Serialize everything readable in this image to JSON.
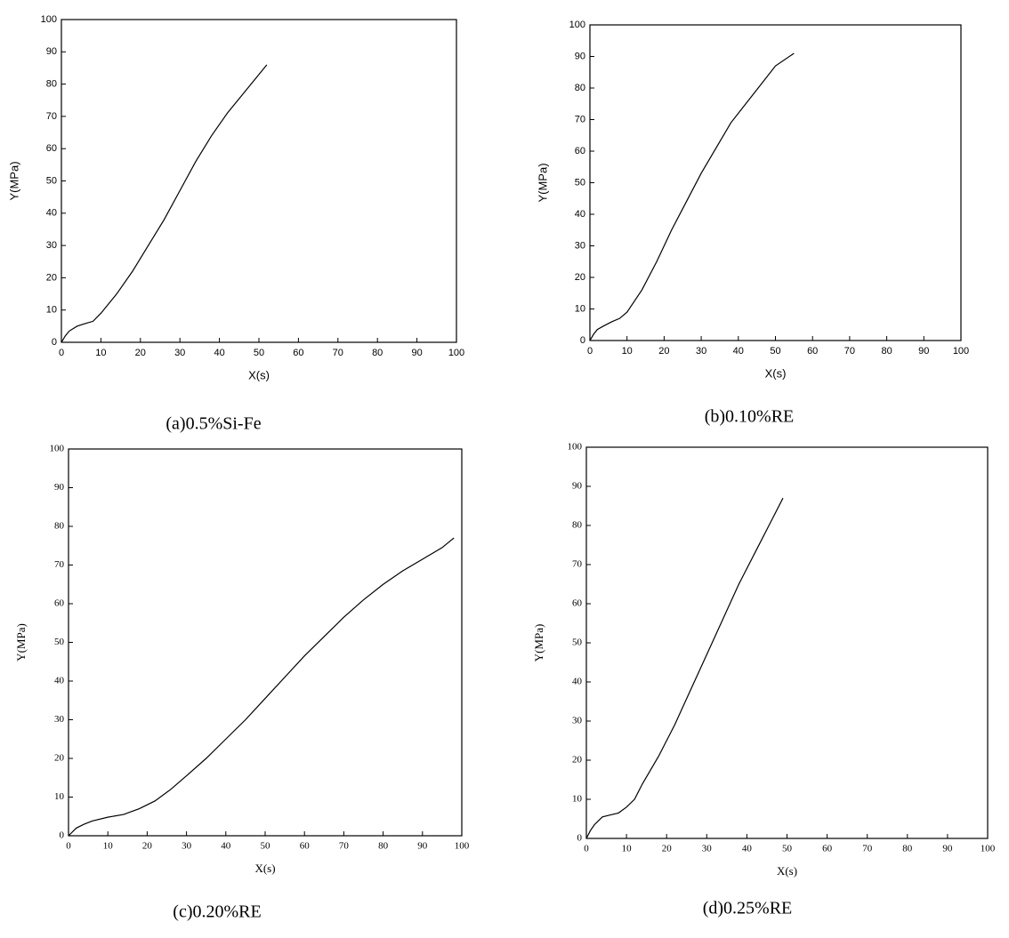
{
  "chart_data": [
    {
      "type": "line",
      "caption": "(a)0.5%Si-Fe",
      "xlabel": "X(s)",
      "ylabel": "Y(MPa)",
      "color": "#000000",
      "xlim": [
        0,
        100
      ],
      "ylim": [
        0,
        100
      ],
      "xticks": [
        0,
        10,
        20,
        30,
        40,
        50,
        60,
        70,
        80,
        90,
        100
      ],
      "yticks": [
        0,
        10,
        20,
        30,
        40,
        50,
        60,
        70,
        80,
        90,
        100
      ],
      "x": [
        0,
        1,
        2,
        4,
        6,
        8,
        10,
        14,
        18,
        22,
        26,
        30,
        34,
        38,
        42,
        46,
        50,
        52
      ],
      "values": [
        0,
        2,
        3.5,
        5,
        5.8,
        6.5,
        9,
        15,
        22,
        30,
        38,
        47,
        56,
        64,
        71,
        77,
        83,
        86
      ]
    },
    {
      "type": "line",
      "caption": "(b)0.10%RE",
      "xlabel": "X(s)",
      "ylabel": "Y(MPa)",
      "color": "#000000",
      "xlim": [
        0,
        100
      ],
      "ylim": [
        0,
        100
      ],
      "xticks": [
        0,
        10,
        20,
        30,
        40,
        50,
        60,
        70,
        80,
        90,
        100
      ],
      "yticks": [
        0,
        10,
        20,
        30,
        40,
        50,
        60,
        70,
        80,
        90,
        100
      ],
      "x": [
        0,
        1,
        2,
        4,
        6,
        8,
        10,
        14,
        18,
        22,
        26,
        30,
        34,
        38,
        42,
        46,
        50,
        55
      ],
      "values": [
        0,
        2,
        3.5,
        4.8,
        6,
        7,
        9,
        16,
        25,
        35,
        44,
        53,
        61,
        69,
        75,
        81,
        87,
        91
      ]
    },
    {
      "type": "line",
      "caption": "(c)0.20%RE",
      "xlabel": "X(s)",
      "ylabel": "Y(MPa)",
      "color": "#000000",
      "xlim": [
        0,
        100
      ],
      "ylim": [
        0,
        100
      ],
      "xticks": [
        0,
        10,
        20,
        30,
        40,
        50,
        60,
        70,
        80,
        90,
        100
      ],
      "yticks": [
        0,
        10,
        20,
        30,
        40,
        50,
        60,
        70,
        80,
        90,
        100
      ],
      "x": [
        0,
        2,
        4,
        6,
        10,
        14,
        18,
        22,
        26,
        30,
        35,
        40,
        45,
        50,
        55,
        60,
        65,
        70,
        75,
        80,
        85,
        90,
        95,
        98
      ],
      "values": [
        0,
        2,
        3,
        3.8,
        4.8,
        5.5,
        7,
        9,
        12,
        15.5,
        20,
        25,
        30,
        35.5,
        41,
        46.5,
        51.5,
        56.5,
        61,
        65,
        68.5,
        71.5,
        74.5,
        77
      ]
    },
    {
      "type": "line",
      "caption": "(d)0.25%RE",
      "xlabel": "X(s)",
      "ylabel": "Y(MPa)",
      "color": "#000000",
      "xlim": [
        0,
        100
      ],
      "ylim": [
        0,
        100
      ],
      "xticks": [
        0,
        10,
        20,
        30,
        40,
        50,
        60,
        70,
        80,
        90,
        100
      ],
      "yticks": [
        0,
        10,
        20,
        30,
        40,
        50,
        60,
        70,
        80,
        90,
        100
      ],
      "x": [
        0,
        1,
        2,
        4,
        6,
        8,
        10,
        12,
        14,
        18,
        22,
        26,
        30,
        34,
        38,
        42,
        46,
        49
      ],
      "values": [
        0,
        2,
        3.5,
        5.5,
        6,
        6.5,
        8,
        10,
        14,
        21,
        29,
        38,
        47,
        56,
        65,
        73,
        81,
        87
      ]
    }
  ]
}
